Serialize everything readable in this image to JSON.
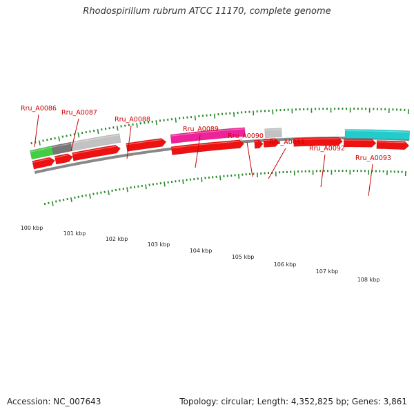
{
  "title": "Rhodospirillum rubrum ATCC 11170, complete genome",
  "footer": {
    "accession": "Accession: NC_007643",
    "summary": "Topology: circular; Length: 4,352,825 bp; Genes: 3,861"
  },
  "colors": {
    "cds": "#ee1111",
    "backbone": "#888888",
    "tick": "#2a8a2a",
    "label": "#cc0000",
    "green": "#44cc44",
    "dark_gray": "#777777",
    "light_gray": "#c2c2c2",
    "magenta": "#ee2299",
    "cyan": "#22cccc"
  },
  "scale_labels": [
    "100 kbp",
    "101 kbp",
    "102 kbp",
    "103 kbp",
    "104 kbp",
    "105 kbp",
    "106 kbp",
    "107 kbp",
    "108 kbp"
  ],
  "gene_labels": [
    "Rru_A0086",
    "Rru_A0087",
    "Rru_A0088",
    "Rru_A0089",
    "Rru_A0090",
    "Rru_A0091",
    "Rru_A0092",
    "Rru_A0093"
  ]
}
